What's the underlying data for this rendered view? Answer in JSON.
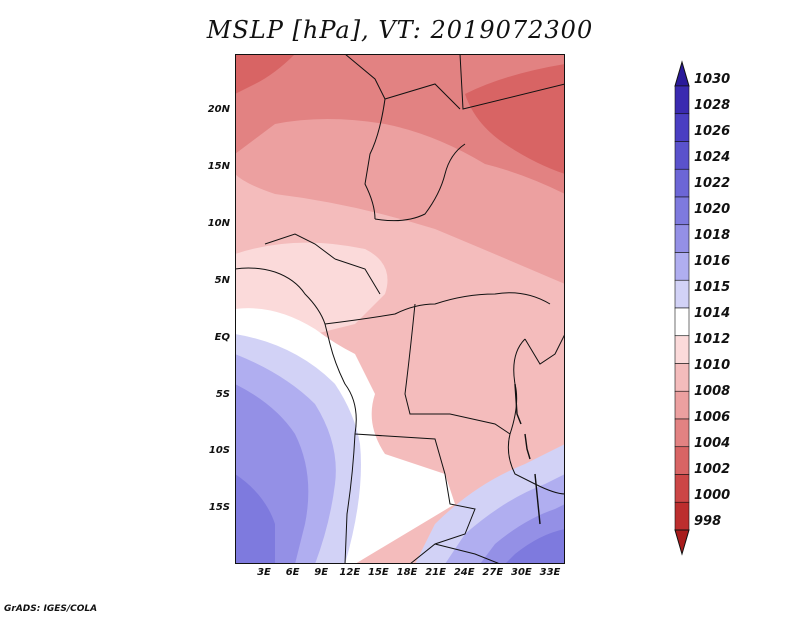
{
  "title": "MSLP [hPa], VT: 2019072300",
  "credit": "GrADS: IGES/COLA",
  "lat_labels": [
    "20N",
    "15N",
    "10N",
    "5N",
    "EQ",
    "5S",
    "10S",
    "15S"
  ],
  "lon_labels": [
    "3E",
    "6E",
    "9E",
    "12E",
    "15E",
    "18E",
    "21E",
    "24E",
    "27E",
    "30E",
    "33E"
  ],
  "colorbar": {
    "levels": [
      "1030",
      "1028",
      "1026",
      "1024",
      "1022",
      "1020",
      "1018",
      "1016",
      "1015",
      "1014",
      "1012",
      "1010",
      "1008",
      "1006",
      "1004",
      "1002",
      "1000",
      "998"
    ],
    "colors": [
      "#2a1a9a",
      "#3a2ab0",
      "#4a3ec2",
      "#5a52cc",
      "#6c66d6",
      "#7e7ade",
      "#9490e6",
      "#b0aef0",
      "#d2d2f6",
      "#ffffff",
      "#fbdada",
      "#f4bcbc",
      "#eca0a0",
      "#e28282",
      "#d86464",
      "#cc4646",
      "#bc2e2e",
      "#a81c1c"
    ]
  }
}
